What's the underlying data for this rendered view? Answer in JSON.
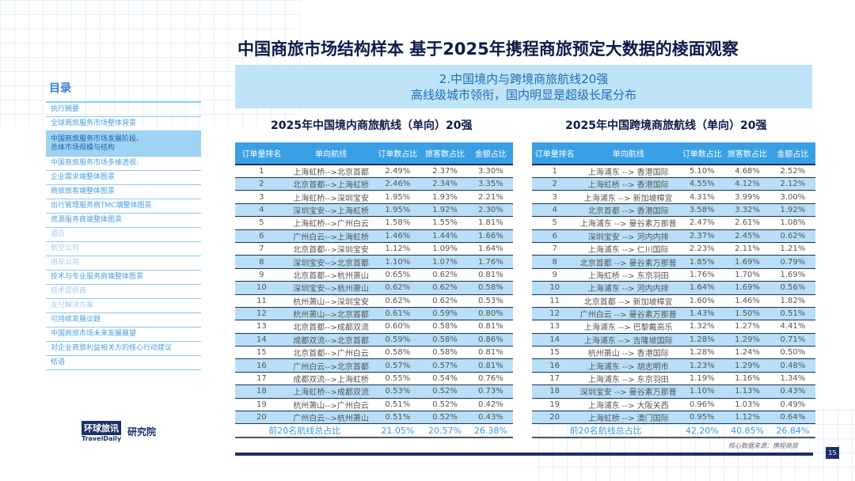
{
  "title": "中国商旅市场结构样本 基于2025年携程商旅预定大数据的棱面观察",
  "banner": {
    "line1": "2.中国境内与跨境商旅航线20强",
    "line2": "高线级城市领衔，国内明显是超级长尾分布"
  },
  "toc": {
    "heading": "目录",
    "items": [
      {
        "label": "执行摘要",
        "state": "normal"
      },
      {
        "label": "全球商旅服务市场整体背景",
        "state": "normal"
      },
      {
        "label": "中国商旅服务市场发展阶段、总体市场规模与结构",
        "state": "selected"
      },
      {
        "label": "中国商旅服务市场多维透视:",
        "state": "normal"
      },
      {
        "label": "企业需求端整体图景",
        "state": "normal"
      },
      {
        "label": "商旅旅客端整体图景",
        "state": "normal"
      },
      {
        "label": "出行管理服务商TMC端整体图景",
        "state": "normal"
      },
      {
        "label": "资源服务商端整体图景",
        "state": "normal"
      },
      {
        "label": "酒店",
        "state": "dim"
      },
      {
        "label": "航空公司",
        "state": "dim"
      },
      {
        "label": "用车公司",
        "state": "dim"
      },
      {
        "label": "技术与专业服务商端整体图景",
        "state": "normal"
      },
      {
        "label": "技术提供商",
        "state": "dim"
      },
      {
        "label": "支付解决方案",
        "state": "dim"
      },
      {
        "label": "可持续发展议题",
        "state": "normal"
      },
      {
        "label": "中国商旅市场未来发展展望",
        "state": "normal"
      },
      {
        "label": "对企业商旅利益相关方的核心行动建议",
        "state": "normal"
      },
      {
        "label": "结语",
        "state": "normal"
      }
    ]
  },
  "tables": [
    {
      "title": "2025年中国境内商旅航线（单向）20强",
      "headers": [
        "订单量排名",
        "单向航线",
        "订单数占比",
        "旅客数占比",
        "金额占比"
      ],
      "rows": [
        [
          "1",
          "上海虹桥-->北京首都",
          "2.49%",
          "2.37%",
          "3.30%"
        ],
        [
          "2",
          "北京首都-->上海虹桥",
          "2.46%",
          "2.34%",
          "3.35%"
        ],
        [
          "3",
          "上海虹桥-->深圳宝安",
          "1.95%",
          "1.93%",
          "2.21%"
        ],
        [
          "4",
          "深圳宝安-->上海虹桥",
          "1.95%",
          "1.92%",
          "2.30%"
        ],
        [
          "5",
          "上海虹桥-->广州白云",
          "1.58%",
          "1.55%",
          "1.81%"
        ],
        [
          "6",
          "广州白云-->上海虹桥",
          "1.46%",
          "1.44%",
          "1.66%"
        ],
        [
          "7",
          "北京首都-->深圳宝安",
          "1.12%",
          "1.09%",
          "1.64%"
        ],
        [
          "8",
          "深圳宝安-->北京首都",
          "1.10%",
          "1.07%",
          "1.76%"
        ],
        [
          "9",
          "北京首都-->杭州萧山",
          "0.65%",
          "0.62%",
          "0.81%"
        ],
        [
          "10",
          "深圳宝安-->杭州萧山",
          "0.62%",
          "0.62%",
          "0.58%"
        ],
        [
          "11",
          "杭州萧山-->深圳宝安",
          "0.62%",
          "0.62%",
          "0.53%"
        ],
        [
          "12",
          "杭州萧山-->北京首都",
          "0.61%",
          "0.59%",
          "0.80%"
        ],
        [
          "13",
          "北京首都-->成都双流",
          "0.60%",
          "0.58%",
          "0.81%"
        ],
        [
          "14",
          "成都双流-->北京首都",
          "0.59%",
          "0.58%",
          "0.86%"
        ],
        [
          "15",
          "北京首都-->广州白云",
          "0.58%",
          "0.58%",
          "0.81%"
        ],
        [
          "16",
          "广州白云-->北京首都",
          "0.57%",
          "0.57%",
          "0.81%"
        ],
        [
          "17",
          "成都双流-->上海虹桥",
          "0.55%",
          "0.54%",
          "0.76%"
        ],
        [
          "18",
          "上海虹桥-->成都双流",
          "0.53%",
          "0.52%",
          "0.73%"
        ],
        [
          "19",
          "杭州萧山-->广州白云",
          "0.51%",
          "0.52%",
          "0.42%"
        ],
        [
          "20",
          "广州白云-->杭州萧山",
          "0.51%",
          "0.52%",
          "0.43%"
        ]
      ],
      "total": [
        "前20名航线总占比",
        "21.05%",
        "20.57%",
        "26.38%"
      ]
    },
    {
      "title": "2025年中国跨境商旅航线（单向）20强",
      "headers": [
        "订单量排名",
        "单向航线",
        "订单数占比",
        "旅客数占比",
        "金额占比"
      ],
      "rows": [
        [
          "1",
          "上海浦东 --> 香港国际",
          "5.10%",
          "4.68%",
          "2.52%"
        ],
        [
          "2",
          "上海虹桥 --> 香港国际",
          "4.55%",
          "4.12%",
          "2.12%"
        ],
        [
          "3",
          "上海浦东 --> 新加坡樟宜",
          "4.31%",
          "3.99%",
          "3.00%"
        ],
        [
          "4",
          "北京首都 --> 香港国际",
          "3.58%",
          "3.32%",
          "1.92%"
        ],
        [
          "5",
          "上海浦东 --> 曼谷素万那普",
          "2.47%",
          "2.61%",
          "1.08%"
        ],
        [
          "6",
          "深圳宝安 --> 河内内排",
          "2.37%",
          "2.45%",
          "0.62%"
        ],
        [
          "7",
          "上海浦东 --> 仁川国际",
          "2.23%",
          "2.11%",
          "1.21%"
        ],
        [
          "8",
          "北京首都 --> 曼谷素万那普",
          "1.85%",
          "1.69%",
          "0.79%"
        ],
        [
          "9",
          "上海虹桥 --> 东京羽田",
          "1.76%",
          "1.70%",
          "1.69%"
        ],
        [
          "10",
          "上海浦东 --> 河内内排",
          "1.64%",
          "1.69%",
          "0.56%"
        ],
        [
          "11",
          "北京首都 --> 新加坡樟宜",
          "1.60%",
          "1.46%",
          "1.82%"
        ],
        [
          "12",
          "广州白云 --> 曼谷素万那普",
          "1.43%",
          "1.50%",
          "0.51%"
        ],
        [
          "13",
          "上海浦东 --> 巴黎戴高乐",
          "1.32%",
          "1.27%",
          "4.41%"
        ],
        [
          "14",
          "上海浦东 --> 吉隆坡国际",
          "1.28%",
          "1.29%",
          "0.71%"
        ],
        [
          "15",
          "杭州萧山 --> 香港国际",
          "1.28%",
          "1.24%",
          "0.50%"
        ],
        [
          "16",
          "上海浦东 --> 胡志明市",
          "1.23%",
          "1.29%",
          "0.48%"
        ],
        [
          "17",
          "上海浦东 --> 东京羽田",
          "1.19%",
          "1.16%",
          "1.34%"
        ],
        [
          "18",
          "深圳宝安 --> 曼谷素万那普",
          "1.10%",
          "1.13%",
          "0.43%"
        ],
        [
          "19",
          "上海浦东 --> 大阪关西",
          "0.96%",
          "1.03%",
          "0.49%"
        ],
        [
          "20",
          "上海虹桥 --> 澳门国际",
          "0.95%",
          "1.12%",
          "0.64%"
        ]
      ],
      "total": [
        "前20名航线总占比",
        "42.20%",
        "40.85%",
        "26.84%"
      ]
    }
  ],
  "footer": {
    "source": "核心数据来源：携程商旅",
    "page": "15",
    "logo_text": "环球旅讯",
    "logo_sub": "TravelDaily",
    "logo_right": "研究院"
  },
  "colors": {
    "header": "#3aa0e6",
    "alt_row": "#b8dff7",
    "banner": "#bfe3f7",
    "navy": "#1b2f6a"
  }
}
